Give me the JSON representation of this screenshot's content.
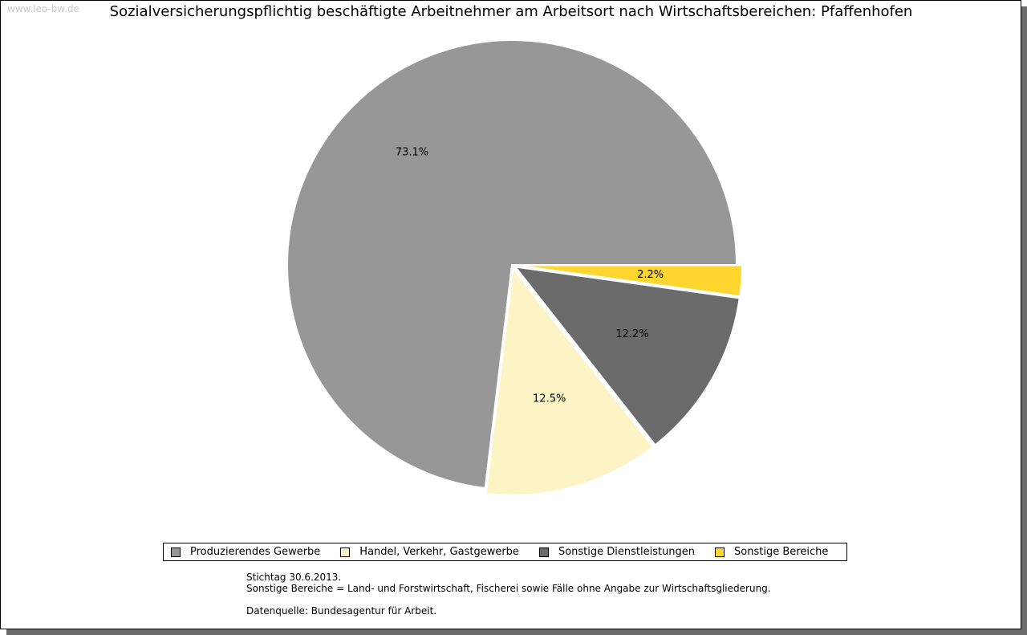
{
  "watermark": "www.leo-bw.de",
  "chart_data": {
    "type": "pie",
    "title": "Sozialversicherungspflichtig beschäftigte Arbeitnehmer am Arbeitsort nach Wirtschaftsbereichen: Pfaffenhofen",
    "start": "3 o'clock, clockwise",
    "slices": [
      {
        "label": "Sonstige Bereiche",
        "value": 2.2,
        "display": "2.2%",
        "color": "#ffd62f"
      },
      {
        "label": "Sonstige Dienstleistungen",
        "value": 12.2,
        "display": "12.2%",
        "color": "#6b6b6b"
      },
      {
        "label": "Handel, Verkehr, Gastgewerbe",
        "value": 12.5,
        "display": "12.5%",
        "color": "#fdf4c5"
      },
      {
        "label": "Produzierendes Gewerbe",
        "value": 73.1,
        "display": "73.1%",
        "color": "#979797"
      }
    ],
    "legend": [
      "Produzierendes Gewerbe",
      "Handel, Verkehr, Gastgewerbe",
      "Sonstige Dienstleistungen",
      "Sonstige Bereiche"
    ],
    "legend_colors": [
      "#979797",
      "#fdf4c5",
      "#6b6b6b",
      "#ffd62f"
    ],
    "legend_placement": "bottom"
  },
  "notes": {
    "line1": "Stichtag 30.6.2013.",
    "line2": "Sonstige Bereiche = Land- und Forstwirtschaft, Fischerei sowie Fälle ohne Angabe zur Wirtschaftsgliederung.",
    "line3": "Datenquelle: Bundesagentur für Arbeit."
  }
}
